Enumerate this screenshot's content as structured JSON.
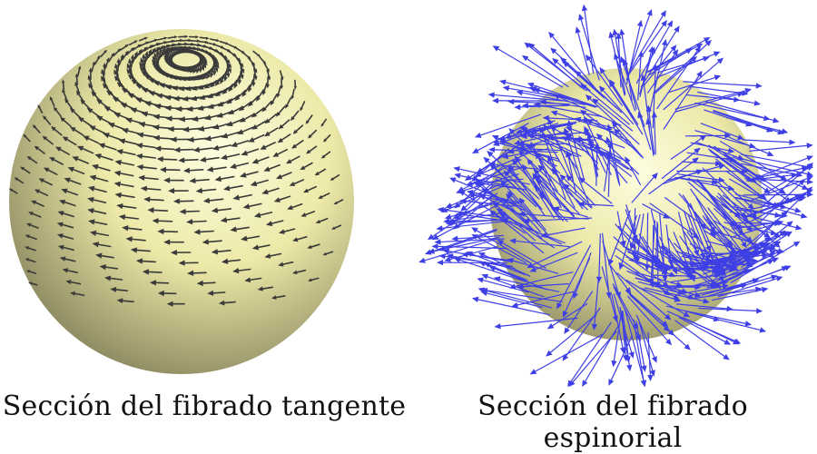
{
  "figure": {
    "left": {
      "caption": "Sección del fibrado tangente",
      "arrow_color": "#3a3a3a"
    },
    "right": {
      "caption": "Sección del fibrado espinorial",
      "arrow_color": "#3f3fe6"
    },
    "sphere_colors": {
      "highlight": "#fdfde0",
      "mid": "#ece9a8",
      "shadow": "#7e7a55"
    }
  }
}
